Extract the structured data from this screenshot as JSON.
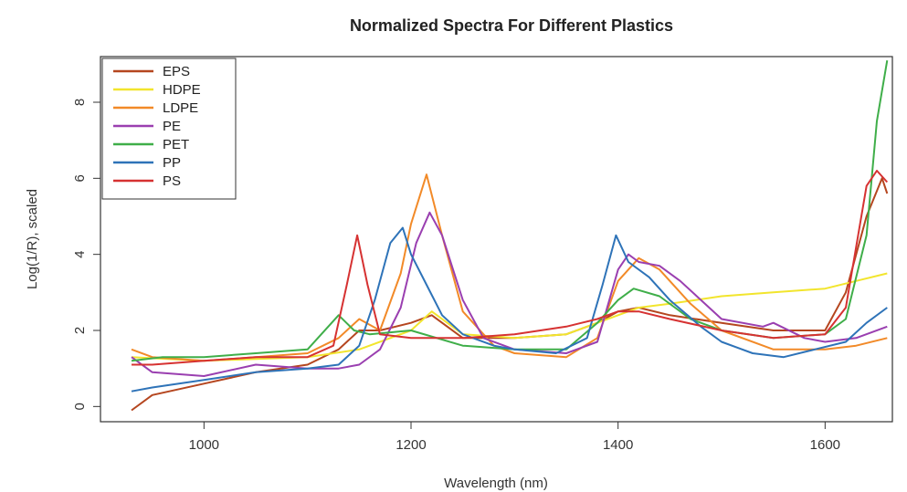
{
  "chart_data": {
    "type": "line",
    "title": "Normalized Spectra For Different Plastics",
    "xlabel": "Wavelength (nm)",
    "ylabel": "Log(1/R), scaled",
    "xlim": [
      900,
      1665
    ],
    "ylim": [
      -0.4,
      9.2
    ],
    "xticks": [
      1000,
      1200,
      1400,
      1600
    ],
    "yticks": [
      0,
      2,
      4,
      6,
      8
    ],
    "grid": false,
    "legend_position": "top-left",
    "series": [
      {
        "name": "EPS",
        "color": "#b5461f",
        "x": [
          930,
          950,
          1000,
          1050,
          1100,
          1130,
          1150,
          1170,
          1200,
          1220,
          1250,
          1300,
          1350,
          1380,
          1400,
          1420,
          1450,
          1500,
          1550,
          1600,
          1620,
          1640,
          1655,
          1660
        ],
        "values": [
          -0.1,
          0.3,
          0.6,
          0.9,
          1.1,
          1.5,
          2.0,
          2.0,
          2.2,
          2.4,
          1.8,
          1.8,
          1.9,
          2.2,
          2.5,
          2.6,
          2.4,
          2.2,
          2.0,
          2.0,
          3.0,
          5.0,
          6.0,
          5.6
        ]
      },
      {
        "name": "HDPE",
        "color": "#f2e52d",
        "x": [
          930,
          1000,
          1100,
          1150,
          1200,
          1220,
          1250,
          1300,
          1350,
          1400,
          1420,
          1450,
          1500,
          1550,
          1600,
          1630,
          1660
        ],
        "values": [
          1.3,
          1.2,
          1.3,
          1.5,
          2.0,
          2.5,
          1.9,
          1.8,
          1.9,
          2.4,
          2.6,
          2.7,
          2.9,
          3.0,
          3.1,
          3.3,
          3.5
        ]
      },
      {
        "name": "LDPE",
        "color": "#f28a28",
        "x": [
          930,
          950,
          1000,
          1050,
          1100,
          1130,
          1150,
          1170,
          1190,
          1200,
          1215,
          1230,
          1250,
          1280,
          1300,
          1350,
          1380,
          1400,
          1420,
          1440,
          1470,
          1500,
          1550,
          1600,
          1630,
          1660
        ],
        "values": [
          1.5,
          1.3,
          1.2,
          1.3,
          1.4,
          1.8,
          2.3,
          2.0,
          3.5,
          4.8,
          6.1,
          4.5,
          2.5,
          1.6,
          1.4,
          1.3,
          1.8,
          3.3,
          3.9,
          3.6,
          2.7,
          2.0,
          1.5,
          1.5,
          1.6,
          1.8
        ]
      },
      {
        "name": "PE",
        "color": "#9a3fb0",
        "x": [
          930,
          950,
          1000,
          1050,
          1100,
          1130,
          1150,
          1170,
          1190,
          1205,
          1218,
          1230,
          1250,
          1270,
          1300,
          1350,
          1380,
          1400,
          1410,
          1420,
          1440,
          1460,
          1500,
          1540,
          1550,
          1580,
          1600,
          1630,
          1660
        ],
        "values": [
          1.3,
          0.9,
          0.8,
          1.1,
          1.0,
          1.0,
          1.1,
          1.5,
          2.6,
          4.3,
          5.1,
          4.5,
          2.8,
          1.8,
          1.5,
          1.4,
          1.7,
          3.6,
          4.0,
          3.8,
          3.7,
          3.3,
          2.3,
          2.1,
          2.2,
          1.8,
          1.7,
          1.8,
          2.1
        ]
      },
      {
        "name": "PET",
        "color": "#3fae49",
        "x": [
          930,
          960,
          1000,
          1050,
          1100,
          1130,
          1145,
          1160,
          1200,
          1250,
          1300,
          1350,
          1380,
          1400,
          1415,
          1440,
          1470,
          1500,
          1550,
          1600,
          1620,
          1640,
          1650,
          1660
        ],
        "values": [
          1.2,
          1.3,
          1.3,
          1.4,
          1.5,
          2.4,
          2.0,
          1.9,
          2.0,
          1.6,
          1.5,
          1.5,
          2.2,
          2.8,
          3.1,
          2.9,
          2.3,
          2.0,
          1.8,
          1.9,
          2.3,
          4.5,
          7.5,
          9.1
        ]
      },
      {
        "name": "PP",
        "color": "#2e73b8",
        "x": [
          930,
          950,
          1000,
          1050,
          1100,
          1130,
          1150,
          1165,
          1180,
          1192,
          1200,
          1215,
          1230,
          1250,
          1280,
          1300,
          1340,
          1370,
          1385,
          1398,
          1410,
          1430,
          1450,
          1480,
          1500,
          1530,
          1560,
          1590,
          1620,
          1640,
          1660
        ],
        "values": [
          0.4,
          0.5,
          0.7,
          0.9,
          1.0,
          1.1,
          1.6,
          2.8,
          4.3,
          4.7,
          4.0,
          3.2,
          2.4,
          1.9,
          1.6,
          1.5,
          1.4,
          1.8,
          3.2,
          4.5,
          3.8,
          3.4,
          2.8,
          2.1,
          1.7,
          1.4,
          1.3,
          1.5,
          1.7,
          2.2,
          2.6
        ]
      },
      {
        "name": "PS",
        "color": "#d63232",
        "x": [
          930,
          950,
          1000,
          1050,
          1100,
          1125,
          1138,
          1148,
          1158,
          1170,
          1200,
          1250,
          1300,
          1350,
          1380,
          1400,
          1420,
          1450,
          1500,
          1550,
          1600,
          1620,
          1640,
          1650,
          1660
        ],
        "values": [
          1.1,
          1.1,
          1.2,
          1.3,
          1.3,
          1.6,
          3.2,
          4.5,
          3.2,
          1.9,
          1.8,
          1.8,
          1.9,
          2.1,
          2.3,
          2.5,
          2.5,
          2.3,
          2.0,
          1.8,
          1.9,
          2.6,
          5.8,
          6.2,
          5.9
        ]
      }
    ]
  }
}
